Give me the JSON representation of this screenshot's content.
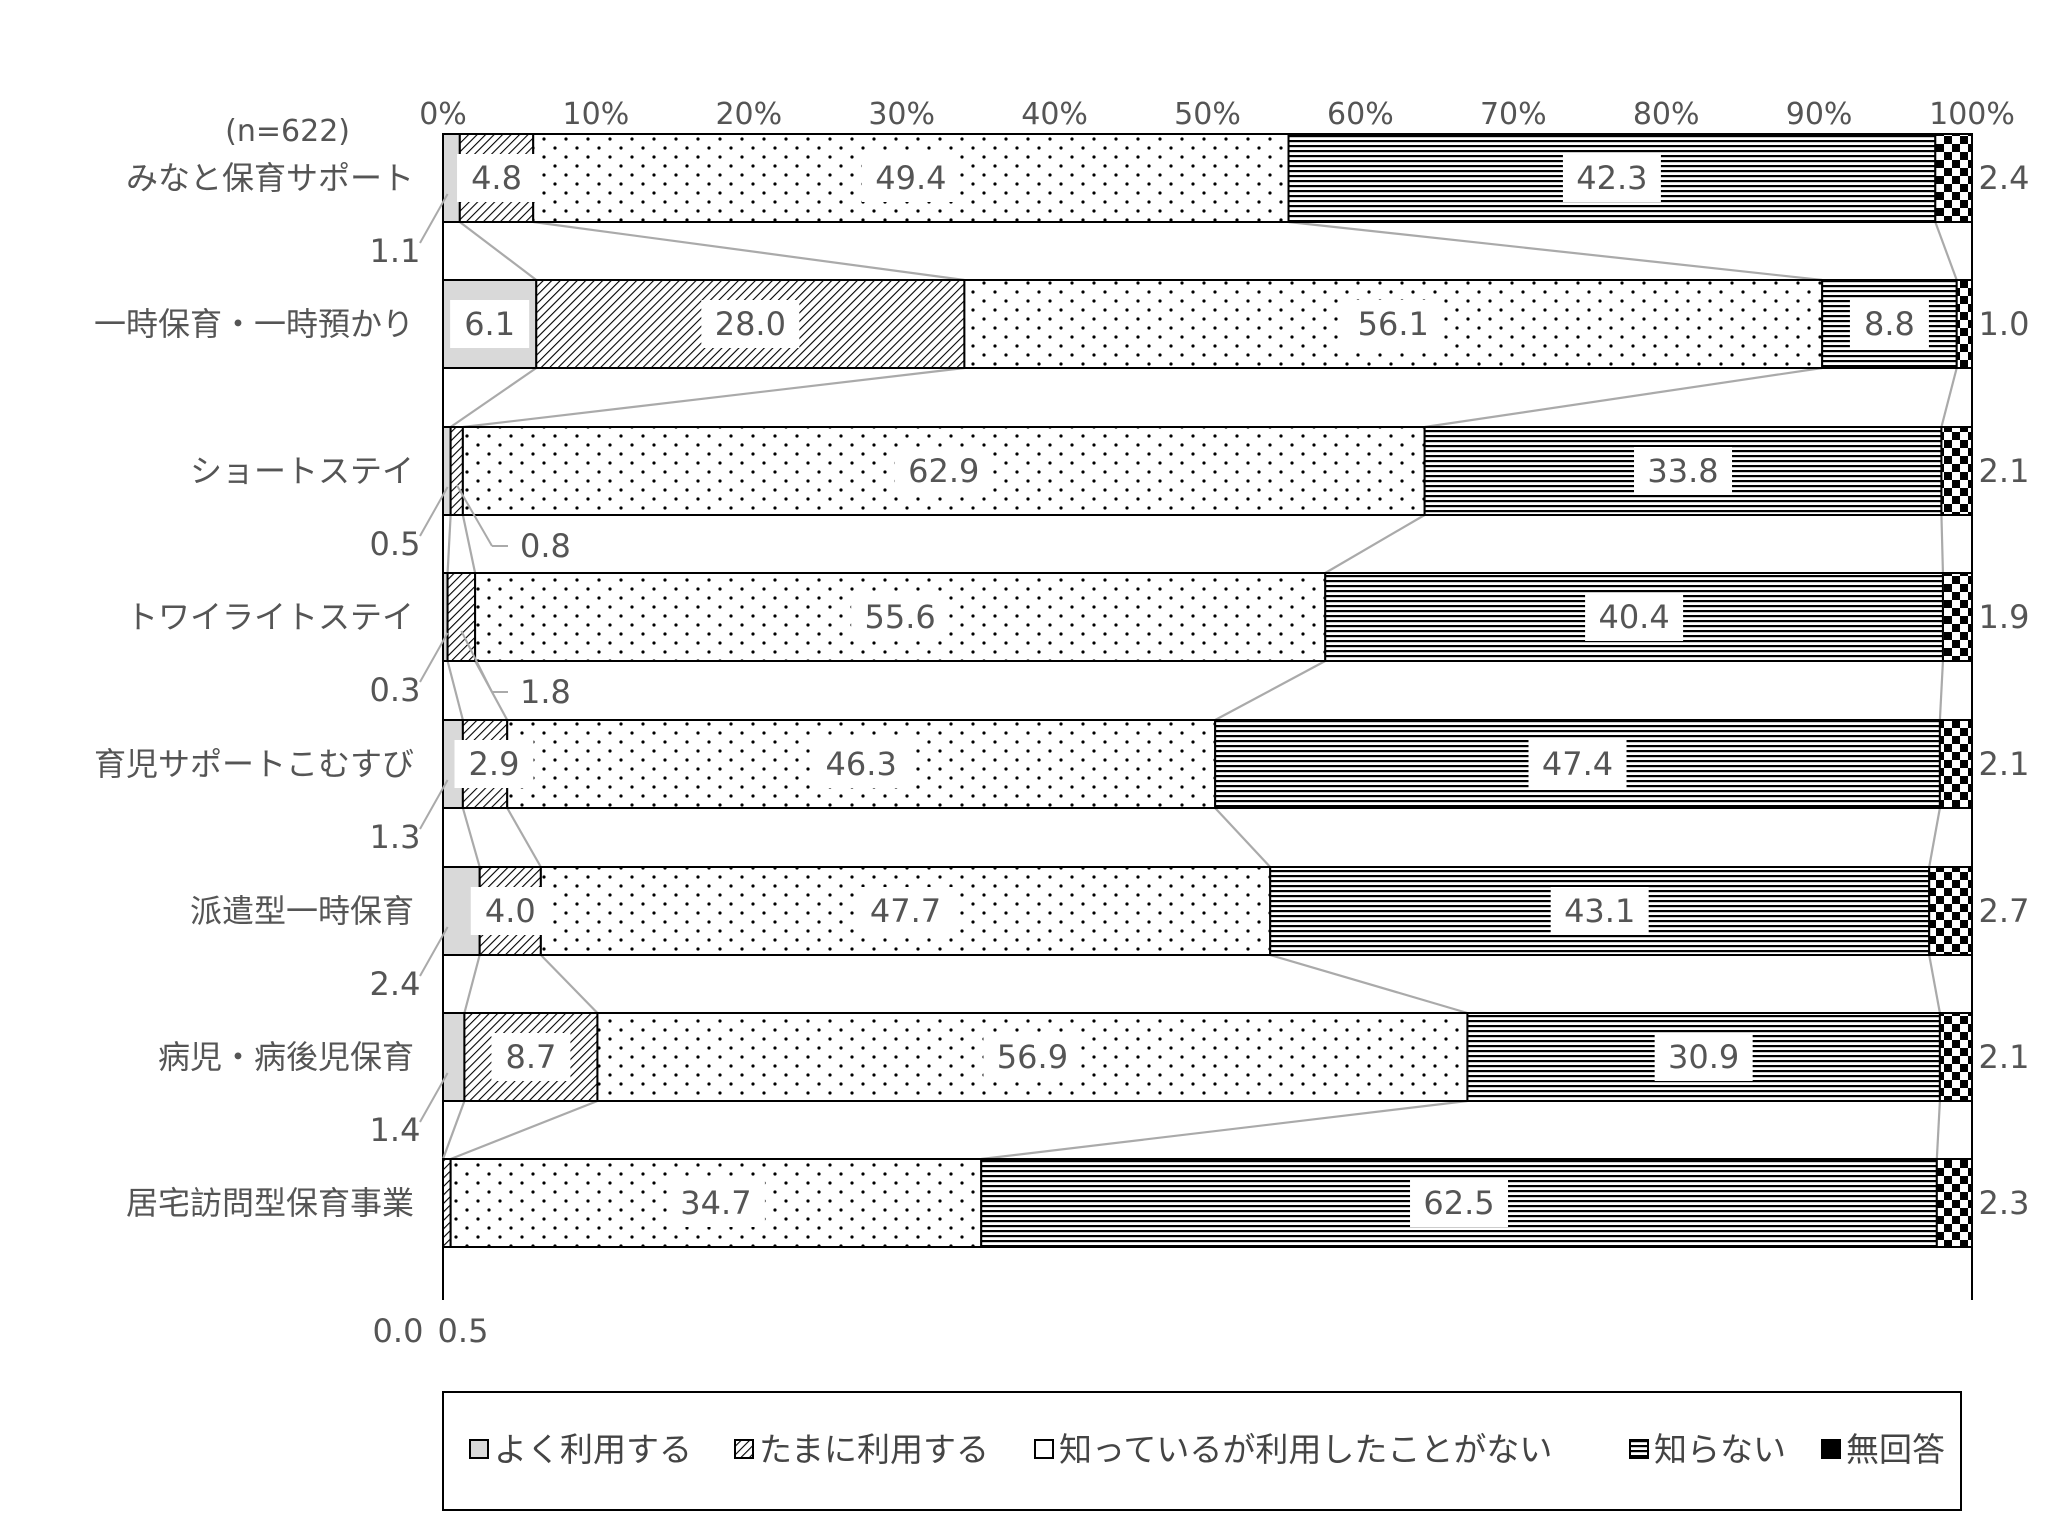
{
  "chart_data": {
    "type": "bar",
    "orientation": "horizontal",
    "stacked": true,
    "percent": true,
    "note": "(n=622)",
    "xlim": [
      0,
      100
    ],
    "x_ticks": [
      "0%",
      "10%",
      "20%",
      "30%",
      "40%",
      "50%",
      "60%",
      "70%",
      "80%",
      "90%",
      "100%"
    ],
    "categories": [
      "みなと保育サポート",
      "一時保育・一時預かり",
      "ショートステイ",
      "トワイライトステイ",
      "育児サポートこむすび",
      "派遣型一時保育",
      "病児・病後児保育",
      "居宅訪問型保育事業"
    ],
    "series": [
      {
        "name": "よく利用する",
        "values": [
          1.1,
          6.1,
          0.5,
          0.3,
          1.3,
          2.4,
          1.4,
          0.0
        ]
      },
      {
        "name": "たまに利用する",
        "values": [
          4.8,
          28.0,
          0.8,
          1.8,
          2.9,
          4.0,
          8.7,
          0.5
        ]
      },
      {
        "name": "知っているが利用したことがない",
        "values": [
          49.4,
          56.1,
          62.9,
          55.6,
          46.3,
          47.7,
          56.9,
          34.7
        ]
      },
      {
        "name": "知らない",
        "values": [
          42.3,
          8.8,
          33.8,
          40.4,
          47.4,
          43.1,
          30.9,
          62.5
        ]
      },
      {
        "name": "無回答",
        "values": [
          2.4,
          1.0,
          2.1,
          1.9,
          2.1,
          2.7,
          2.1,
          2.3
        ]
      }
    ],
    "value_labels": [
      [
        "1.1",
        "4.8",
        "49.4",
        "42.3",
        "2.4"
      ],
      [
        "6.1",
        "28.0",
        "56.1",
        "8.8",
        "1.0"
      ],
      [
        "0.5",
        "0.8",
        "62.9",
        "33.8",
        "2.1"
      ],
      [
        "0.3",
        "1.8",
        "55.6",
        "40.4",
        "1.9"
      ],
      [
        "1.3",
        "2.9",
        "46.3",
        "47.4",
        "2.1"
      ],
      [
        "2.4",
        "4.0",
        "47.7",
        "43.1",
        "2.7"
      ],
      [
        "1.4",
        "8.7",
        "56.9",
        "30.9",
        "2.1"
      ],
      [
        "0.0",
        "0.5",
        "34.7",
        "62.5",
        "2.3"
      ]
    ],
    "colors": {
      "よく利用する": "#d9d9d9",
      "connector": "#aaaaaa",
      "border": "#000000"
    },
    "legend_position": "bottom",
    "grid": false
  }
}
